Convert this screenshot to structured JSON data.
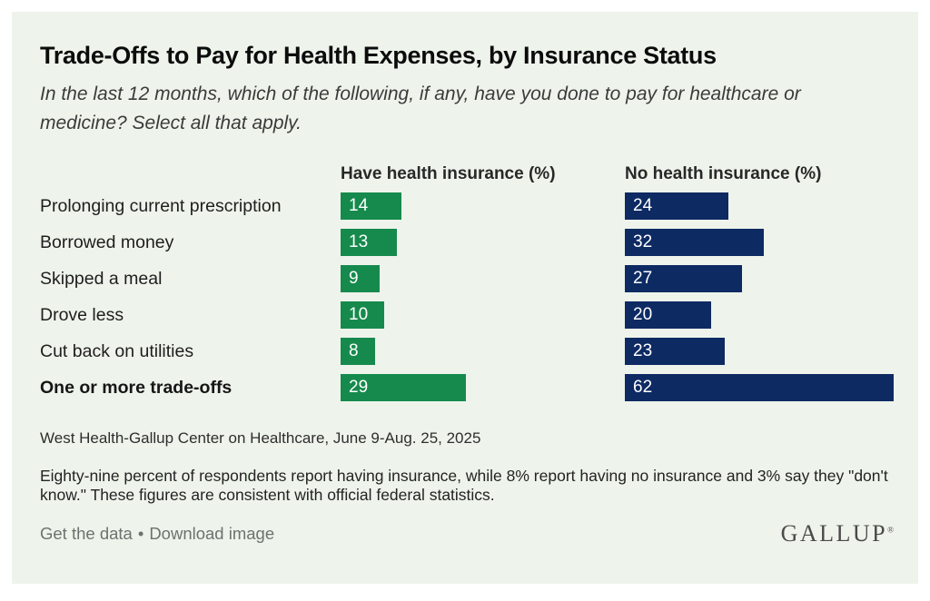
{
  "header": {
    "title": "Trade-Offs to Pay for Health Expenses, by Insurance Status",
    "subtitle": "In the last 12 months, which of the following, if any, have you done to pay for healthcare or medicine? Select all that apply."
  },
  "chart_data": {
    "type": "bar",
    "orientation": "horizontal",
    "categories": [
      "Prolonging current prescription",
      "Borrowed money",
      "Skipped a meal",
      "Drove less",
      "Cut back on utilities",
      "One or more trade-offs"
    ],
    "series": [
      {
        "name": "Have health insurance (%)",
        "color": "#168a4d",
        "values": [
          14,
          13,
          9,
          10,
          8,
          29
        ]
      },
      {
        "name": "No health insurance (%)",
        "color": "#0e2a63",
        "values": [
          24,
          32,
          27,
          20,
          23,
          62
        ]
      }
    ],
    "bold_categories": [
      "One or more trade-offs"
    ],
    "value_labels": "inside-start",
    "value_label_color": "#ffffff",
    "xlim": [
      0,
      62
    ],
    "grid": false,
    "legend_position": "column-headers"
  },
  "source": "West Health-Gallup Center on Healthcare, June 9-Aug. 25, 2025",
  "note": "Eighty-nine percent of respondents report having insurance, while 8% report having no insurance and 3% say they \"don't know.\" These figures are consistent with official federal statistics.",
  "footer": {
    "links": [
      "Get the data",
      "Download image"
    ],
    "separator": "•",
    "brand": "GALLUP",
    "brand_mark": "®"
  },
  "colors": {
    "card_background": "#eef4eb",
    "page_background": "#ffffff",
    "insured_green": "#168a4d",
    "uninsured_navy": "#0e2a63"
  }
}
